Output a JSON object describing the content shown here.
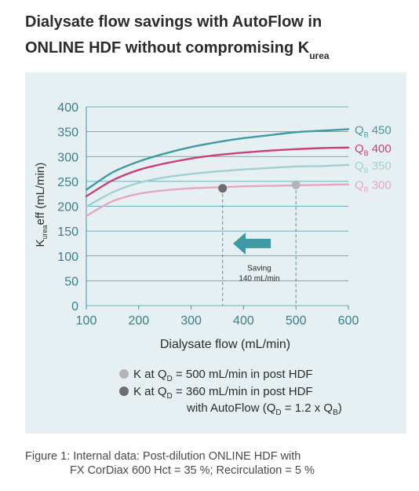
{
  "title": {
    "line1": "Dialysate flow savings with AutoFlow in",
    "line2_main": "ONLINE HDF without compromising K",
    "line2_sub": "urea"
  },
  "chart_data": {
    "type": "line",
    "xlabel": "Dialysate flow (mL/min)",
    "ylabel_k": "K",
    "ylabel_sub": "urea",
    "ylabel_rest": "eff (mL/min)",
    "xlim": [
      100,
      600
    ],
    "ylim": [
      0,
      400
    ],
    "x_ticks": [
      100,
      200,
      300,
      400,
      500,
      600
    ],
    "y_ticks": [
      0,
      50,
      100,
      150,
      200,
      250,
      300,
      350,
      400
    ],
    "grid": "horizontal",
    "x": [
      100,
      150,
      200,
      250,
      300,
      350,
      400,
      450,
      500,
      550,
      600
    ],
    "series": [
      {
        "name": "Q",
        "name_sub": "B",
        "name_value": "450",
        "color": "#3e9aa3",
        "values": [
          233,
          268,
          290,
          306,
          319,
          329,
          337,
          343,
          349,
          352,
          355
        ]
      },
      {
        "name": "Q",
        "name_sub": "B",
        "name_value": "400",
        "color": "#c8417a",
        "values": [
          220,
          252,
          273,
          286,
          296,
          303,
          308,
          312,
          315,
          317,
          318
        ]
      },
      {
        "name": "Q",
        "name_sub": "B",
        "name_value": "350",
        "color": "#9fd0d3",
        "values": [
          199,
          228,
          247,
          258,
          265,
          270,
          274,
          277,
          280,
          281,
          283
        ]
      },
      {
        "name": "Q",
        "name_sub": "B",
        "name_value": "300",
        "color": "#e6a6c2",
        "values": [
          180,
          210,
          225,
          232,
          236,
          238,
          240,
          241,
          242,
          243,
          244
        ]
      }
    ],
    "points": [
      {
        "x": 360,
        "y": 236,
        "color": "#6e6e6e"
      },
      {
        "x": 500,
        "y": 243,
        "color": "#b4b4b4"
      }
    ],
    "saving_annotation": {
      "line1": "Saving",
      "line2": "140 mL/min",
      "color": "#3e9aa3"
    }
  },
  "legend": [
    {
      "dot_color": "#b4b4b4",
      "prefix": "K at Q",
      "sub": "D",
      "text": " = 500 mL/min in post HDF"
    },
    {
      "dot_color": "#6e6e6e",
      "prefix": "K at Q",
      "sub": "D",
      "text": " = 360 mL/min in post HDF"
    }
  ],
  "legend_cont": {
    "pre": "with AutoFlow (Q",
    "sub1": "D",
    "mid": " = 1.2 x Q",
    "sub2": "B",
    "post": ")"
  },
  "caption": {
    "line1": "Figure 1: Internal data: Post-dilution ONLINE HDF with",
    "line2": "FX CorDiax 600 Hct = 35 %; Recirculation = 5 %"
  }
}
